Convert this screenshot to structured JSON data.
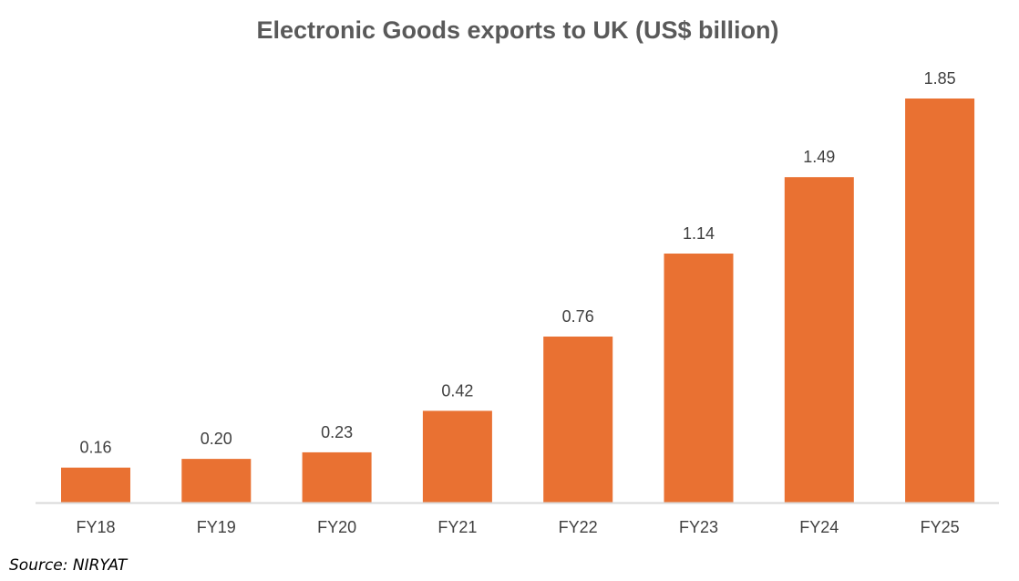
{
  "chart_data": {
    "type": "bar",
    "title": "Electronic Goods exports to UK (US$ billion)",
    "categories": [
      "FY18",
      "FY19",
      "FY20",
      "FY21",
      "FY22",
      "FY23",
      "FY24",
      "FY25"
    ],
    "values": [
      0.16,
      0.2,
      0.23,
      0.42,
      0.76,
      1.14,
      1.49,
      1.85
    ],
    "data_labels": [
      "0.16",
      "0.20",
      "0.23",
      "0.42",
      "0.76",
      "1.14",
      "1.49",
      "1.85"
    ],
    "xlabel": "",
    "ylabel": "",
    "ylim": [
      0,
      1.85
    ],
    "grid": false,
    "legend": "none",
    "bar_color": "#E97132",
    "axis_color": "#D9D9D9",
    "text_color": "#404040"
  },
  "source": "Source: NIRYAT"
}
